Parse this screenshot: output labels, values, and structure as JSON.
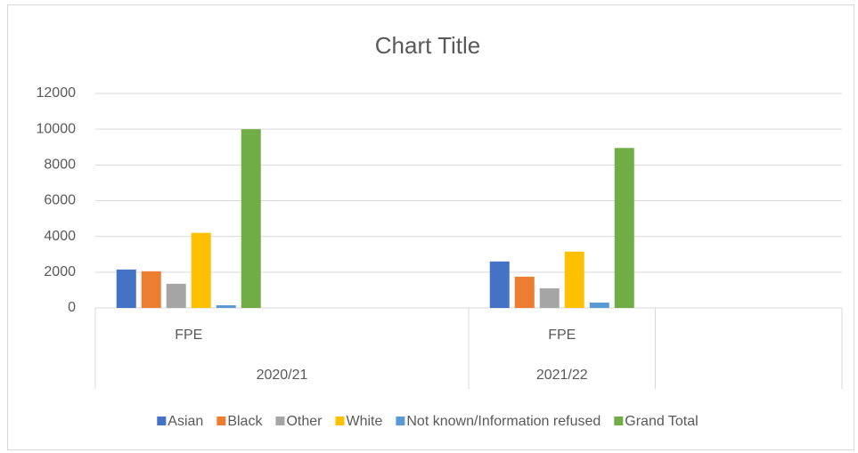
{
  "chart_data": {
    "type": "bar",
    "title": "Chart Title",
    "categories": [
      "FPE",
      null,
      "FPE",
      null
    ],
    "outer_categories": [
      "2020/21",
      "2020/21",
      "2021/22",
      null
    ],
    "series": [
      {
        "name": "Asian",
        "color": "#4472c4",
        "values": [
          2150,
          null,
          2600,
          null
        ]
      },
      {
        "name": "Black",
        "color": "#ed7d31",
        "values": [
          2050,
          null,
          1750,
          null
        ]
      },
      {
        "name": "Other",
        "color": "#a5a5a5",
        "values": [
          1350,
          null,
          1100,
          null
        ]
      },
      {
        "name": "White",
        "color": "#ffc000",
        "values": [
          4200,
          null,
          3150,
          null
        ]
      },
      {
        "name": "Not known/Information refused",
        "color": "#5b9bd5",
        "values": [
          150,
          null,
          300,
          null
        ]
      },
      {
        "name": "Grand Total",
        "color": "#70ad47",
        "values": [
          10000,
          null,
          8950,
          null
        ]
      }
    ],
    "ylim": [
      0,
      12000
    ],
    "yticks": [
      0,
      2000,
      4000,
      6000,
      8000,
      10000,
      12000
    ],
    "grid": true,
    "legend": "bottom"
  }
}
